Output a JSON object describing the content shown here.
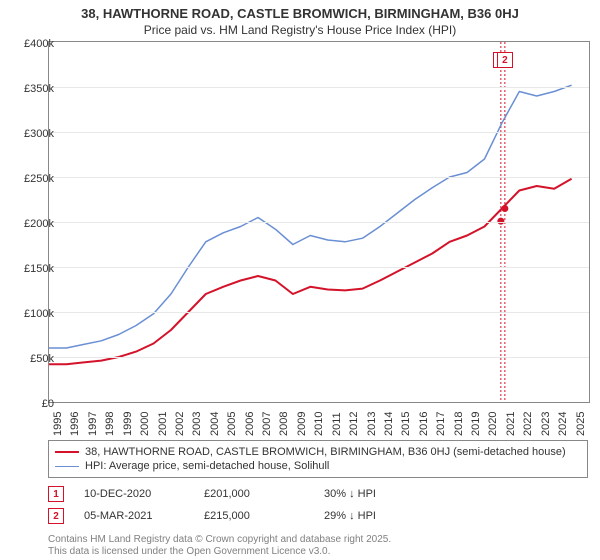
{
  "title_line1": "38, HAWTHORNE ROAD, CASTLE BROMWICH, BIRMINGHAM, B36 0HJ",
  "title_line2": "Price paid vs. HM Land Registry's House Price Index (HPI)",
  "chart": {
    "type": "line",
    "background_color": "#ffffff",
    "grid_color": "#e8e8e8",
    "border_color": "#888888",
    "x_range": [
      1995,
      2026
    ],
    "y_range": [
      0,
      400000
    ],
    "y_ticks": [
      0,
      50000,
      100000,
      150000,
      200000,
      250000,
      300000,
      350000,
      400000
    ],
    "y_tick_labels": [
      "£0",
      "£50k",
      "£100k",
      "£150k",
      "£200k",
      "£250k",
      "£300k",
      "£350k",
      "£400k"
    ],
    "x_ticks": [
      1995,
      1996,
      1997,
      1998,
      1999,
      2000,
      2001,
      2002,
      2003,
      2004,
      2005,
      2006,
      2007,
      2008,
      2009,
      2010,
      2011,
      2012,
      2013,
      2014,
      2015,
      2016,
      2017,
      2018,
      2019,
      2020,
      2021,
      2022,
      2023,
      2024,
      2025
    ],
    "series": [
      {
        "name": "price_paid",
        "color": "#d4122a",
        "line_width": 2,
        "points": [
          [
            1995,
            42000
          ],
          [
            1996,
            42000
          ],
          [
            1997,
            44000
          ],
          [
            1998,
            46000
          ],
          [
            1999,
            50000
          ],
          [
            2000,
            56000
          ],
          [
            2001,
            65000
          ],
          [
            2002,
            80000
          ],
          [
            2003,
            100000
          ],
          [
            2004,
            120000
          ],
          [
            2005,
            128000
          ],
          [
            2006,
            135000
          ],
          [
            2007,
            140000
          ],
          [
            2008,
            135000
          ],
          [
            2009,
            120000
          ],
          [
            2010,
            128000
          ],
          [
            2011,
            125000
          ],
          [
            2012,
            124000
          ],
          [
            2013,
            126000
          ],
          [
            2014,
            135000
          ],
          [
            2015,
            145000
          ],
          [
            2016,
            155000
          ],
          [
            2017,
            165000
          ],
          [
            2018,
            178000
          ],
          [
            2019,
            185000
          ],
          [
            2020,
            195000
          ],
          [
            2021,
            215000
          ],
          [
            2022,
            235000
          ],
          [
            2023,
            240000
          ],
          [
            2024,
            237000
          ],
          [
            2025,
            248000
          ]
        ]
      },
      {
        "name": "hpi",
        "color": "#6a8fd4",
        "line_width": 1.5,
        "points": [
          [
            1995,
            60000
          ],
          [
            1996,
            60000
          ],
          [
            1997,
            64000
          ],
          [
            1998,
            68000
          ],
          [
            1999,
            75000
          ],
          [
            2000,
            85000
          ],
          [
            2001,
            98000
          ],
          [
            2002,
            120000
          ],
          [
            2003,
            150000
          ],
          [
            2004,
            178000
          ],
          [
            2005,
            188000
          ],
          [
            2006,
            195000
          ],
          [
            2007,
            205000
          ],
          [
            2008,
            192000
          ],
          [
            2009,
            175000
          ],
          [
            2010,
            185000
          ],
          [
            2011,
            180000
          ],
          [
            2012,
            178000
          ],
          [
            2013,
            182000
          ],
          [
            2014,
            195000
          ],
          [
            2015,
            210000
          ],
          [
            2016,
            225000
          ],
          [
            2017,
            238000
          ],
          [
            2018,
            250000
          ],
          [
            2019,
            255000
          ],
          [
            2020,
            270000
          ],
          [
            2021,
            310000
          ],
          [
            2022,
            345000
          ],
          [
            2023,
            340000
          ],
          [
            2024,
            345000
          ],
          [
            2025,
            352000
          ]
        ]
      }
    ],
    "sale_markers": [
      {
        "num": "1",
        "x": 2020.94,
        "y": 201000,
        "color": "#d4122a"
      },
      {
        "num": "2",
        "x": 2021.17,
        "y": 215000,
        "color": "#d4122a"
      }
    ]
  },
  "legend": {
    "items": [
      {
        "color": "#d4122a",
        "width": 2,
        "label": "38, HAWTHORNE ROAD, CASTLE BROMWICH, BIRMINGHAM, B36 0HJ (semi-detached house)"
      },
      {
        "color": "#6a8fd4",
        "width": 1.5,
        "label": "HPI: Average price, semi-detached house, Solihull"
      }
    ]
  },
  "sales": [
    {
      "num": "1",
      "color": "#d4122a",
      "date": "10-DEC-2020",
      "price": "£201,000",
      "delta": "30% ↓ HPI"
    },
    {
      "num": "2",
      "color": "#d4122a",
      "date": "05-MAR-2021",
      "price": "£215,000",
      "delta": "29% ↓ HPI"
    }
  ],
  "footer_line1": "Contains HM Land Registry data © Crown copyright and database right 2025.",
  "footer_line2": "This data is licensed under the Open Government Licence v3.0."
}
